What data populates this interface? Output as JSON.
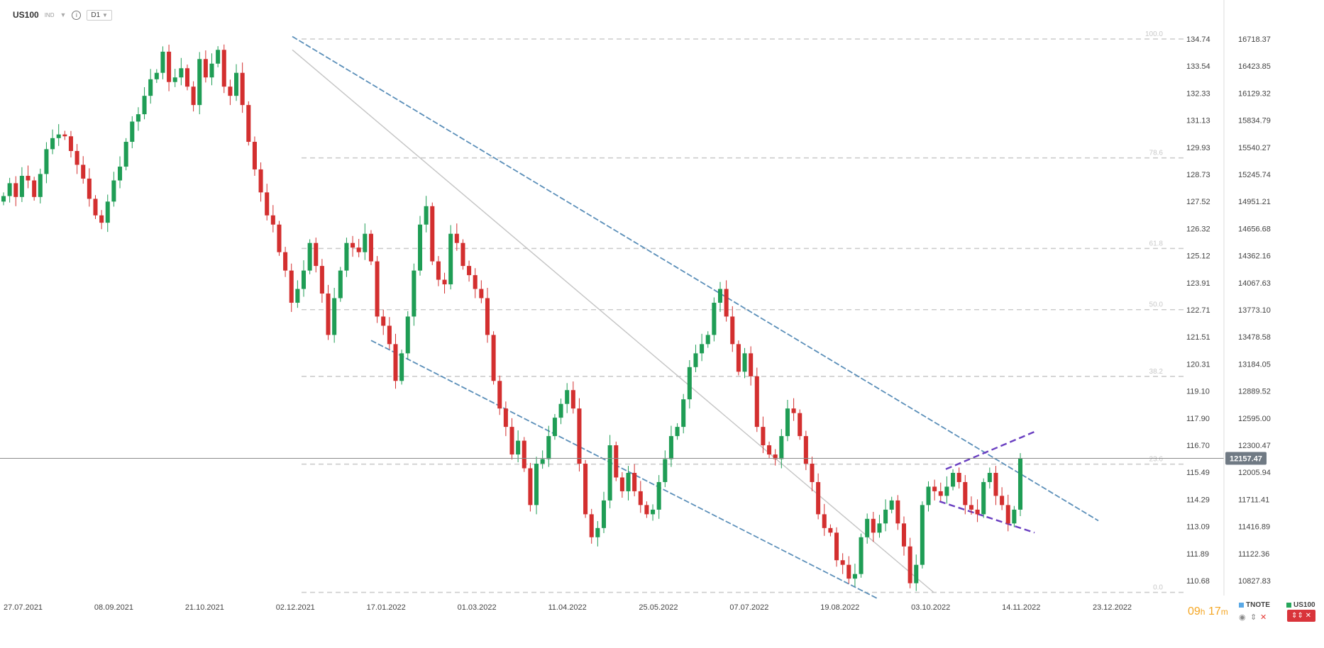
{
  "header": {
    "symbol": "US100",
    "badge": "IND",
    "timeframe": "D1"
  },
  "timer": {
    "hours": "09",
    "h_unit": "h",
    "minutes": "17",
    "m_unit": "m"
  },
  "legend": [
    {
      "label": "TNOTE",
      "color": "#5aa9e6"
    },
    {
      "label": "US100",
      "color": "#26a65b"
    }
  ],
  "colors": {
    "up": "#1f9d55",
    "down": "#d32f2f",
    "channel": "#5b8fb9",
    "wedge": "#6a3fc1",
    "fib": "#cccccc",
    "price_tag": "#707a84"
  },
  "chart_data": {
    "type": "candlestick",
    "x": [
      "27.07.2021",
      "08.09.2021",
      "21.10.2021",
      "02.12.2021",
      "17.01.2022",
      "01.03.2022",
      "11.04.2022",
      "25.05.2022",
      "07.07.2022",
      "19.08.2022",
      "03.10.2022",
      "14.11.2022",
      "23.12.2022"
    ],
    "right_axis_1": [
      "134.74",
      "133.54",
      "132.33",
      "131.13",
      "129.93",
      "128.73",
      "127.52",
      "126.32",
      "125.12",
      "123.91",
      "122.71",
      "121.51",
      "120.31",
      "119.10",
      "117.90",
      "116.70",
      "115.49",
      "114.29",
      "113.09",
      "111.89",
      "110.68"
    ],
    "right_axis_2": [
      "16718.37",
      "16423.85",
      "16129.32",
      "15834.79",
      "15540.27",
      "15245.74",
      "14951.21",
      "14656.68",
      "14362.16",
      "14067.63",
      "13773.10",
      "13478.58",
      "13184.05",
      "12889.52",
      "12595.00",
      "12300.47",
      "12005.94",
      "11711.41",
      "11416.89",
      "11122.36",
      "10827.83"
    ],
    "current_price": "12157.47",
    "fibonacci_levels": [
      {
        "label": "100.0",
        "price": 16718
      },
      {
        "label": "78.6",
        "price": 15425
      },
      {
        "label": "61.8",
        "price": 14440
      },
      {
        "label": "50.0",
        "price": 13775
      },
      {
        "label": "38.2",
        "price": 13050
      },
      {
        "label": "23.6",
        "price": 12095
      },
      {
        "label": "0.0",
        "price": 10700
      }
    ],
    "closes": [
      15010,
      15150,
      15000,
      15230,
      15180,
      15000,
      15250,
      15520,
      15640,
      15680,
      15660,
      15500,
      15350,
      15200,
      14980,
      14800,
      14720,
      14950,
      15180,
      15330,
      15600,
      15820,
      15900,
      16100,
      16280,
      16350,
      16580,
      16250,
      16300,
      16400,
      16200,
      16000,
      16500,
      16300,
      16450,
      16600,
      16200,
      16100,
      16350,
      16000,
      15600,
      15300,
      15050,
      14800,
      14700,
      14400,
      14200,
      13850,
      14000,
      14200,
      14500,
      14250,
      13950,
      13500,
      13900,
      14200,
      14500,
      14450,
      14400,
      14600,
      14300,
      13700,
      13600,
      13400,
      13000,
      13300,
      13700,
      14200,
      14700,
      14900,
      14300,
      14100,
      14050,
      14600,
      14500,
      14250,
      14150,
      14000,
      13900,
      13500,
      13000,
      12700,
      12500,
      12200,
      12350,
      12050,
      11650,
      12100,
      12150,
      12400,
      12600,
      12750,
      12900,
      12700,
      12100,
      11550,
      11300,
      11400,
      11700,
      12300,
      11950,
      11800,
      12000,
      11800,
      11650,
      11550,
      11600,
      11900,
      12150,
      12400,
      12500,
      12800,
      13150,
      13300,
      13400,
      13500,
      13850,
      14000,
      13700,
      13400,
      13100,
      13300,
      13050,
      12500,
      12300,
      12200,
      12150,
      12400,
      12700,
      12650,
      12400,
      12100,
      11900,
      11550,
      11400,
      11350,
      11050,
      11000,
      10850,
      10900,
      11300,
      11500,
      11350,
      11450,
      11600,
      11700,
      11450,
      11200,
      10800,
      11000,
      11650,
      11850,
      11800,
      11750,
      11850,
      12000,
      11900,
      11650,
      11600,
      11550,
      11900,
      12000,
      11750,
      11650,
      11450,
      11600,
      12157
    ]
  }
}
